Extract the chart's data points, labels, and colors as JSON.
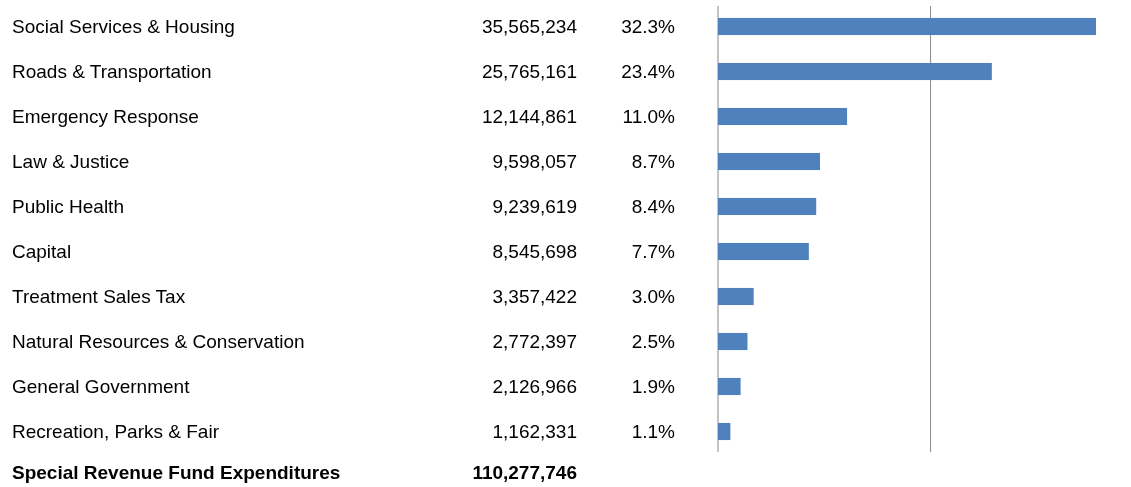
{
  "chart_data": {
    "type": "bar",
    "orientation": "horizontal",
    "categories": [
      "Social Services & Housing",
      "Roads & Transportation",
      "Emergency Response",
      "Law & Justice",
      "Public Health",
      "Capital",
      "Treatment Sales Tax",
      "Natural Resources & Conservation",
      "General Government",
      "Recreation, Parks & Fair"
    ],
    "values": [
      35565234,
      25765161,
      12144861,
      9598057,
      9239619,
      8545698,
      3357422,
      2772397,
      2126966,
      1162331
    ],
    "value_labels": [
      "35,565,234",
      "25,765,161",
      "12,144,861",
      "9,598,057",
      "9,239,619",
      "8,545,698",
      "3,357,422",
      "2,772,397",
      "2,126,966",
      "1,162,331"
    ],
    "color": "#4f81bd",
    "ref_lines": [
      {
        "axis": "x",
        "value": 20000000
      }
    ],
    "tick_labels": "y",
    "annotations": [
      "32.3%",
      "23.4%",
      "11.0%",
      "8.7%",
      "8.4%",
      "7.7%",
      "3.0%",
      "2.5%",
      "1.9%",
      "1.1%",
      "Special Revenue Fund Expenditures",
      "110,277,746"
    ]
  }
}
